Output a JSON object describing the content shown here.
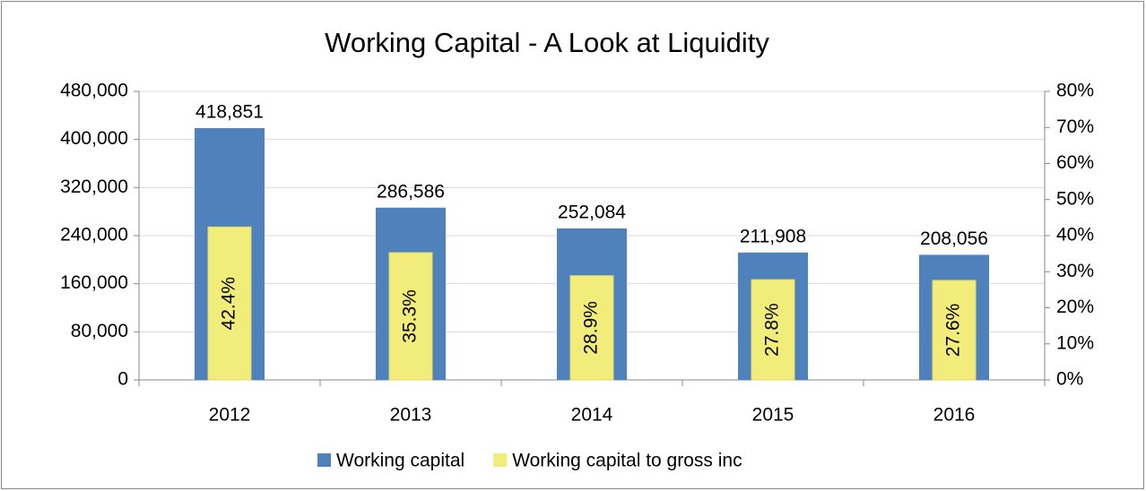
{
  "chart_data": {
    "type": "bar",
    "title": "Working Capital - A Look at Liquidity",
    "categories": [
      "2012",
      "2013",
      "2014",
      "2015",
      "2016"
    ],
    "series": [
      {
        "name": "Working capital",
        "color": "#4f81bd",
        "axis": "y",
        "values": [
          418851,
          286586,
          252084,
          211908,
          208056
        ],
        "value_labels": [
          "418,851",
          "286,586",
          "252,084",
          "211,908",
          "208,056"
        ]
      },
      {
        "name": "Working capital to gross inc",
        "color": "#f2ec7a",
        "axis": "y2",
        "values": [
          42.4,
          35.3,
          28.9,
          27.8,
          27.6
        ],
        "value_labels": [
          "42.4%",
          "35.3%",
          "28.9%",
          "27.8%",
          "27.6%"
        ]
      }
    ],
    "ylim": [
      0,
      480000
    ],
    "yticks": [
      0,
      {
        "value": 80000,
        "label": "80,000"
      },
      {
        "value": 160000,
        "label": "160,000"
      },
      {
        "value": 240000,
        "label": "240,000"
      },
      {
        "value": 320000,
        "label": "320,000"
      },
      {
        "value": 400000,
        "label": "400,000"
      },
      {
        "value": 480000,
        "label": "480,000"
      }
    ],
    "y2lim": [
      0,
      80
    ],
    "y2ticks": [
      {
        "value": 0,
        "label": "0%"
      },
      {
        "value": 10,
        "label": "10%"
      },
      {
        "value": 20,
        "label": "20%"
      },
      {
        "value": 30,
        "label": "30%"
      },
      {
        "value": 40,
        "label": "40%"
      },
      {
        "value": 50,
        "label": "50%"
      },
      {
        "value": 60,
        "label": "60%"
      },
      {
        "value": 70,
        "label": "70%"
      },
      {
        "value": 80,
        "label": "80%"
      }
    ],
    "grid": true,
    "legend": "bottom"
  }
}
